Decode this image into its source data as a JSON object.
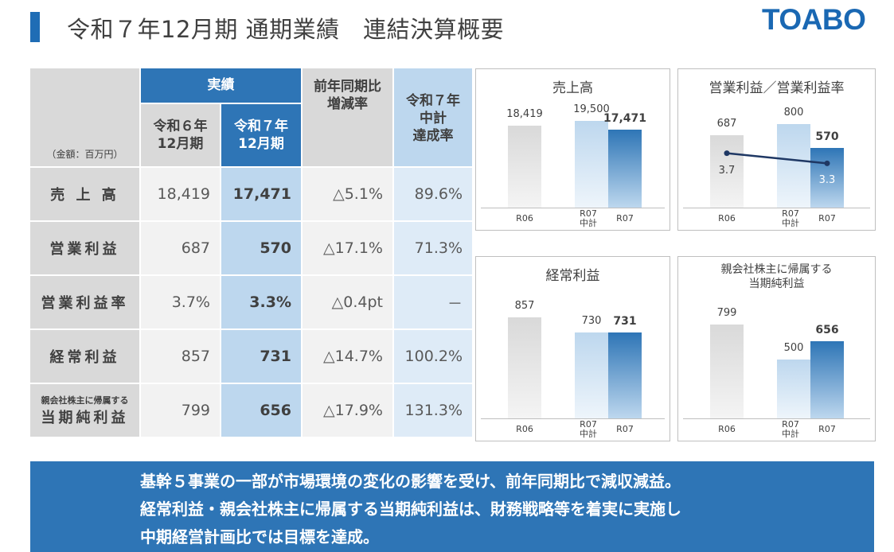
{
  "header": {
    "title": "令和７年12月期 通期業績　連結決算概要",
    "logo": "TOABO"
  },
  "table": {
    "unit_note": "（金額：百万円）",
    "group_header": "実績",
    "col_prev": "令和６年\n12月期",
    "col_curr": "令和７年\n12月期",
    "col_change": "前年同期比\n増減率",
    "col_plan": "令和７年\n中計\n達成率",
    "rows": [
      {
        "label": "売 上 高",
        "prev": "18,419",
        "curr": "17,471",
        "change": "△5.1%",
        "plan": "89.6%"
      },
      {
        "label": "営業利益",
        "prev": "687",
        "curr": "570",
        "change": "△17.1%",
        "plan": "71.3%"
      },
      {
        "label": "営業利益率",
        "prev": "3.7%",
        "curr": "3.3%",
        "change": "△0.4pt",
        "plan": "－"
      },
      {
        "label": "経常利益",
        "prev": "857",
        "curr": "731",
        "change": "△14.7%",
        "plan": "100.2%"
      },
      {
        "label_small": "親会社株主に帰属する",
        "label": "当期純利益",
        "prev": "799",
        "curr": "656",
        "change": "△17.9%",
        "plan": "131.3%"
      }
    ]
  },
  "chart_data": [
    {
      "type": "bar",
      "title": "売上高",
      "categories": [
        "R06",
        "R07 中計",
        "R07"
      ],
      "cat_lines": [
        [
          "R06"
        ],
        [
          "R07",
          "中計"
        ],
        [
          "R07"
        ]
      ],
      "values": [
        18419,
        19500,
        17471
      ],
      "labels": [
        "18,419",
        "19,500",
        "17,471"
      ],
      "ylim": [
        0,
        20000
      ]
    },
    {
      "type": "bar",
      "title": "営業利益／営業利益率",
      "categories": [
        "R06",
        "R07 中計",
        "R07"
      ],
      "cat_lines": [
        [
          "R06"
        ],
        [
          "R07",
          "中計"
        ],
        [
          "R07"
        ]
      ],
      "values": [
        687,
        800,
        570
      ],
      "labels": [
        "687",
        "800",
        "570"
      ],
      "ylim": [
        0,
        850
      ],
      "line_series": {
        "name": "営業利益率",
        "points": [
          {
            "x": "R06",
            "y": 3.7
          },
          {
            "x": "R07",
            "y": 3.3
          }
        ],
        "labels": [
          "3.7",
          "3.3"
        ]
      }
    },
    {
      "type": "bar",
      "title": "経常利益",
      "categories": [
        "R06",
        "R07 中計",
        "R07"
      ],
      "cat_lines": [
        [
          "R06"
        ],
        [
          "R07",
          "中計"
        ],
        [
          "R07"
        ]
      ],
      "values": [
        857,
        730,
        731
      ],
      "labels": [
        "857",
        "730",
        "731"
      ],
      "ylim": [
        0,
        900
      ]
    },
    {
      "type": "bar",
      "title": "親会社株主に帰属する\n当期純利益",
      "categories": [
        "R06",
        "R07 中計",
        "R07"
      ],
      "cat_lines": [
        [
          "R06"
        ],
        [
          "R07",
          "中計"
        ],
        [
          "R07"
        ]
      ],
      "values": [
        799,
        500,
        656
      ],
      "labels": [
        "799",
        "500",
        "656"
      ],
      "ylim": [
        0,
        900
      ]
    }
  ],
  "summary": [
    "基幹５事業の一部が市場環境の変化の影響を受け、前年同期比で減収減益。",
    "経常利益・親会社株主に帰属する当期純利益は、財務戦略等を着実に実施し",
    "中期経営計画比では目標を達成。"
  ],
  "colors": {
    "accent": "#2e75b6",
    "light": "#bdd7ee",
    "grey": "#d9d9d9"
  }
}
